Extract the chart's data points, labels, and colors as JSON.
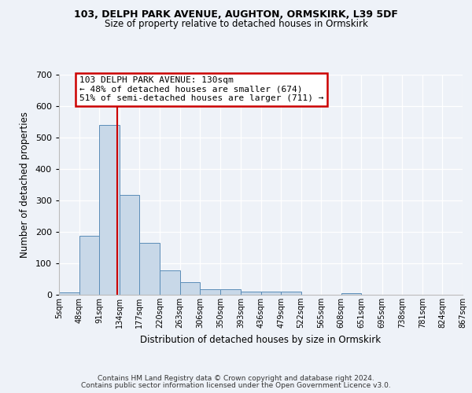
{
  "title1": "103, DELPH PARK AVENUE, AUGHTON, ORMSKIRK, L39 5DF",
  "title2": "Size of property relative to detached houses in Ormskirk",
  "xlabel": "Distribution of detached houses by size in Ormskirk",
  "ylabel": "Number of detached properties",
  "bin_edges": [
    5,
    48,
    91,
    134,
    177,
    220,
    263,
    306,
    350,
    393,
    436,
    479,
    522,
    565,
    608,
    651,
    695,
    738,
    781,
    824,
    867
  ],
  "bar_heights": [
    8,
    188,
    540,
    318,
    165,
    78,
    40,
    18,
    18,
    10,
    10,
    10,
    0,
    0,
    5,
    0,
    0,
    0,
    0,
    0
  ],
  "bar_color": "#c8d8e8",
  "bar_edge_color": "#5b8db8",
  "property_line_x": 130,
  "property_line_color": "#cc0000",
  "annotation_text": "103 DELPH PARK AVENUE: 130sqm\n← 48% of detached houses are smaller (674)\n51% of semi-detached houses are larger (711) →",
  "annotation_box_color": "#ffffff",
  "annotation_box_edge_color": "#cc0000",
  "ylim": [
    0,
    700
  ],
  "yticks": [
    0,
    100,
    200,
    300,
    400,
    500,
    600,
    700
  ],
  "tick_labels": [
    "5sqm",
    "48sqm",
    "91sqm",
    "134sqm",
    "177sqm",
    "220sqm",
    "263sqm",
    "306sqm",
    "350sqm",
    "393sqm",
    "436sqm",
    "479sqm",
    "522sqm",
    "565sqm",
    "608sqm",
    "651sqm",
    "695sqm",
    "738sqm",
    "781sqm",
    "824sqm",
    "867sqm"
  ],
  "footer_text1": "Contains HM Land Registry data © Crown copyright and database right 2024.",
  "footer_text2": "Contains public sector information licensed under the Open Government Licence v3.0.",
  "background_color": "#eef2f8",
  "plot_background": "#eef2f8"
}
